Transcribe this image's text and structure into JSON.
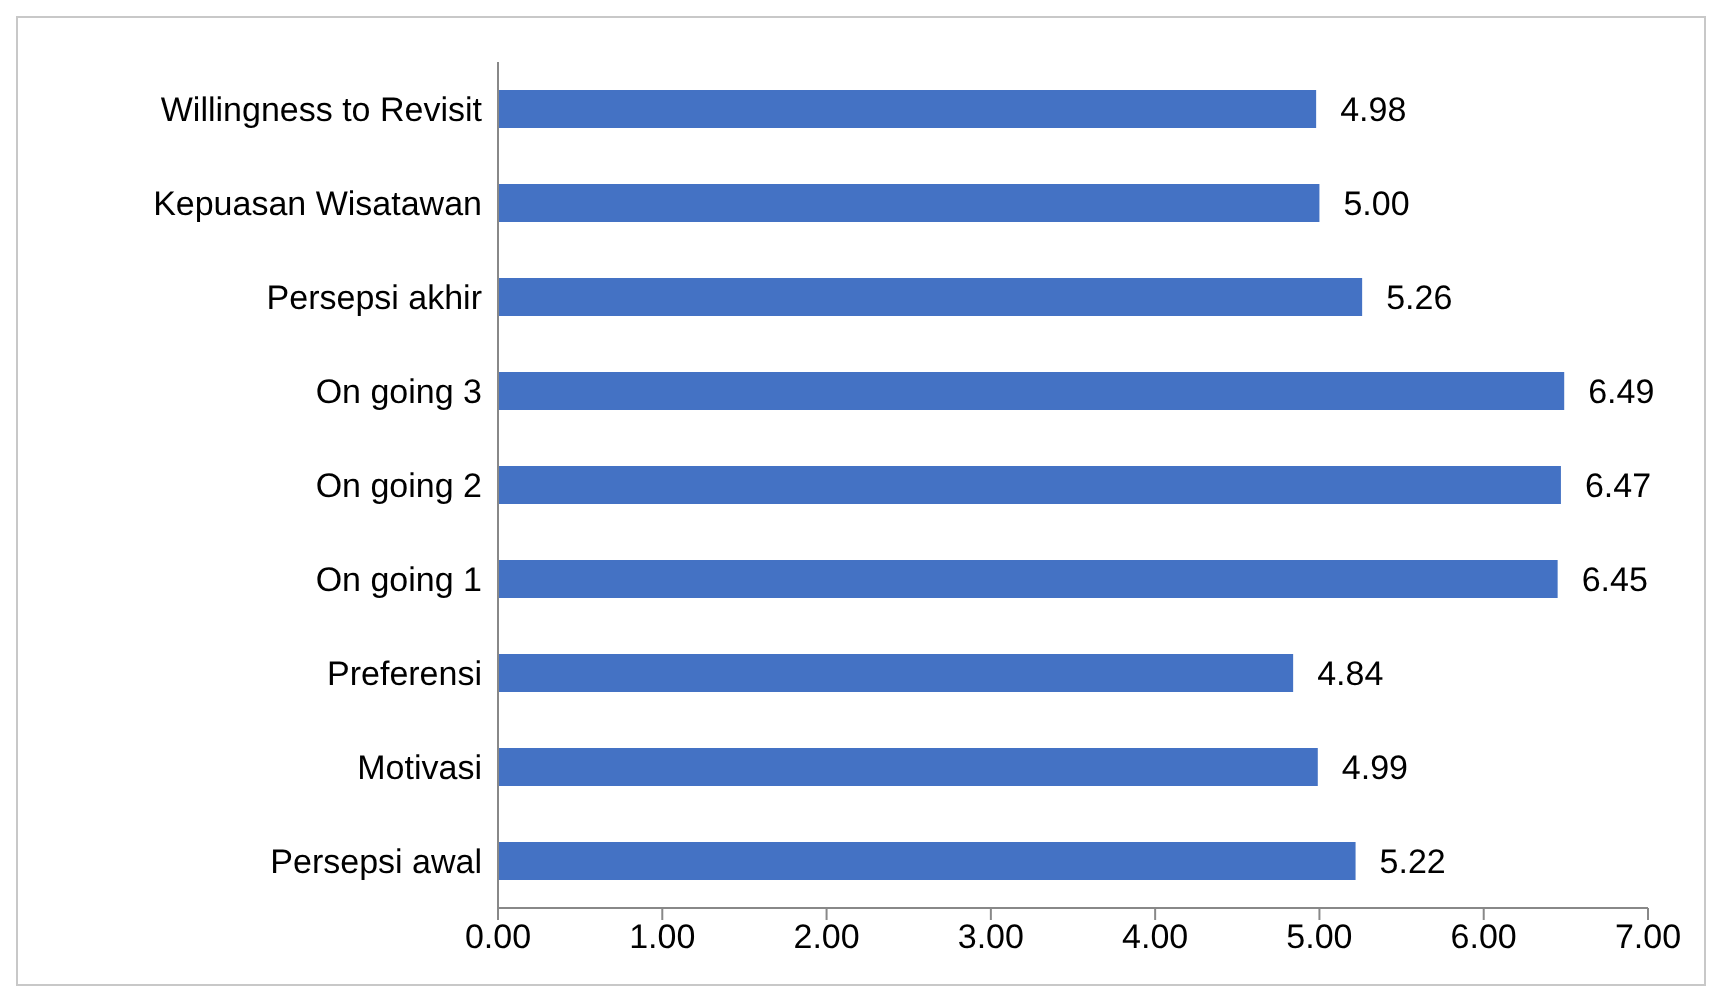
{
  "chart_data": {
    "type": "bar",
    "orientation": "horizontal",
    "categories": [
      "Willingness to Revisit",
      "Kepuasan Wisatawan",
      "Persepsi akhir",
      "On going 3",
      "On going 2",
      "On going 1",
      "Preferensi",
      "Motivasi",
      "Persepsi awal"
    ],
    "values": [
      4.98,
      5.0,
      5.26,
      6.49,
      6.47,
      6.45,
      4.84,
      4.99,
      5.22
    ],
    "value_labels": [
      "4.98",
      "5.00",
      "5.26",
      "6.49",
      "6.47",
      "6.45",
      "4.84",
      "4.99",
      "5.22"
    ],
    "color": "#4472c4",
    "xlim": [
      0,
      7
    ],
    "xticks": [
      {
        "value": 0,
        "label": "0.00"
      },
      {
        "value": 1,
        "label": "1.00"
      },
      {
        "value": 2,
        "label": "2.00"
      },
      {
        "value": 3,
        "label": "3.00"
      },
      {
        "value": 4,
        "label": "4.00"
      },
      {
        "value": 5,
        "label": "5.00"
      },
      {
        "value": 6,
        "label": "6.00"
      },
      {
        "value": 7,
        "label": "7.00"
      }
    ],
    "grid": false,
    "legend": false
  }
}
